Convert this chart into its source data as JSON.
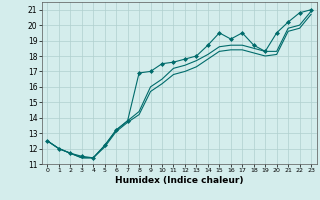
{
  "xlabel": "Humidex (Indice chaleur)",
  "xlim": [
    -0.5,
    23.5
  ],
  "ylim": [
    11,
    21.5
  ],
  "yticks": [
    11,
    12,
    13,
    14,
    15,
    16,
    17,
    18,
    19,
    20,
    21
  ],
  "xticks": [
    0,
    1,
    2,
    3,
    4,
    5,
    6,
    7,
    8,
    9,
    10,
    11,
    12,
    13,
    14,
    15,
    16,
    17,
    18,
    19,
    20,
    21,
    22,
    23
  ],
  "bg_color": "#d4edec",
  "grid_color": "#b0d0ce",
  "line_color": "#006b6b",
  "series": [
    {
      "marker": true,
      "x": [
        0,
        1,
        2,
        3,
        4,
        5,
        6,
        7,
        8,
        9,
        10,
        11,
        12,
        13,
        14,
        15,
        16,
        17,
        18,
        19,
        20,
        21,
        22,
        23
      ],
      "y": [
        12.5,
        12.0,
        11.7,
        11.5,
        11.4,
        12.2,
        13.2,
        13.8,
        16.9,
        17.0,
        17.5,
        17.6,
        17.8,
        18.0,
        18.7,
        19.5,
        19.1,
        19.5,
        18.7,
        18.3,
        19.5,
        20.2,
        20.8,
        21.0
      ]
    },
    {
      "marker": false,
      "x": [
        0,
        1,
        2,
        3,
        4,
        5,
        6,
        7,
        8,
        9,
        10,
        11,
        12,
        13,
        14,
        15,
        16,
        17,
        18,
        19,
        20,
        21,
        22,
        23
      ],
      "y": [
        12.5,
        12.0,
        11.7,
        11.4,
        11.4,
        12.2,
        13.2,
        13.8,
        14.4,
        16.0,
        16.5,
        17.2,
        17.4,
        17.7,
        18.1,
        18.6,
        18.7,
        18.7,
        18.5,
        18.3,
        18.3,
        19.8,
        20.0,
        20.9
      ]
    },
    {
      "marker": false,
      "x": [
        0,
        1,
        2,
        3,
        4,
        5,
        6,
        7,
        8,
        9,
        10,
        11,
        12,
        13,
        14,
        15,
        16,
        17,
        18,
        19,
        20,
        21,
        22,
        23
      ],
      "y": [
        12.5,
        12.0,
        11.7,
        11.4,
        11.4,
        12.1,
        13.1,
        13.7,
        14.2,
        15.7,
        16.2,
        16.8,
        17.0,
        17.3,
        17.8,
        18.3,
        18.4,
        18.4,
        18.2,
        18.0,
        18.1,
        19.6,
        19.8,
        20.7
      ]
    }
  ]
}
